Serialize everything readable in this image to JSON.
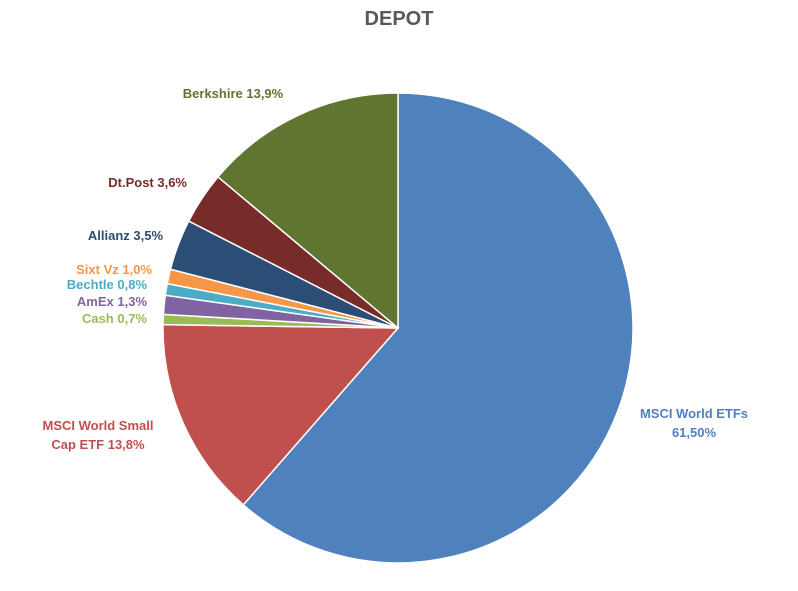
{
  "chart_data": {
    "type": "pie",
    "title": "DEPOT",
    "slices": [
      {
        "label": "MSCI World ETFs",
        "value_text": "61,50%",
        "value": 61.5,
        "color": "#4F81BD"
      },
      {
        "label": "MSCI World Small Cap ETF",
        "value_text": "13,8%",
        "value": 13.8,
        "color": "#C0504D"
      },
      {
        "label": "Cash",
        "value_text": "0,7%",
        "value": 0.7,
        "color": "#9BBB59"
      },
      {
        "label": "AmEx",
        "value_text": "1,3%",
        "value": 1.3,
        "color": "#8064A2"
      },
      {
        "label": "Bechtle",
        "value_text": "0,8%",
        "value": 0.8,
        "color": "#4BACC6"
      },
      {
        "label": "Sixt Vz",
        "value_text": "1,0%",
        "value": 1.0,
        "color": "#F79646"
      },
      {
        "label": "Allianz",
        "value_text": "3,5%",
        "value": 3.5,
        "color": "#2C4D75"
      },
      {
        "label": "Dt.Post",
        "value_text": "3,6%",
        "value": 3.6,
        "color": "#772C2A"
      },
      {
        "label": "Berkshire",
        "value_text": "13,9%",
        "value": 13.9,
        "color": "#5F7530"
      }
    ]
  }
}
